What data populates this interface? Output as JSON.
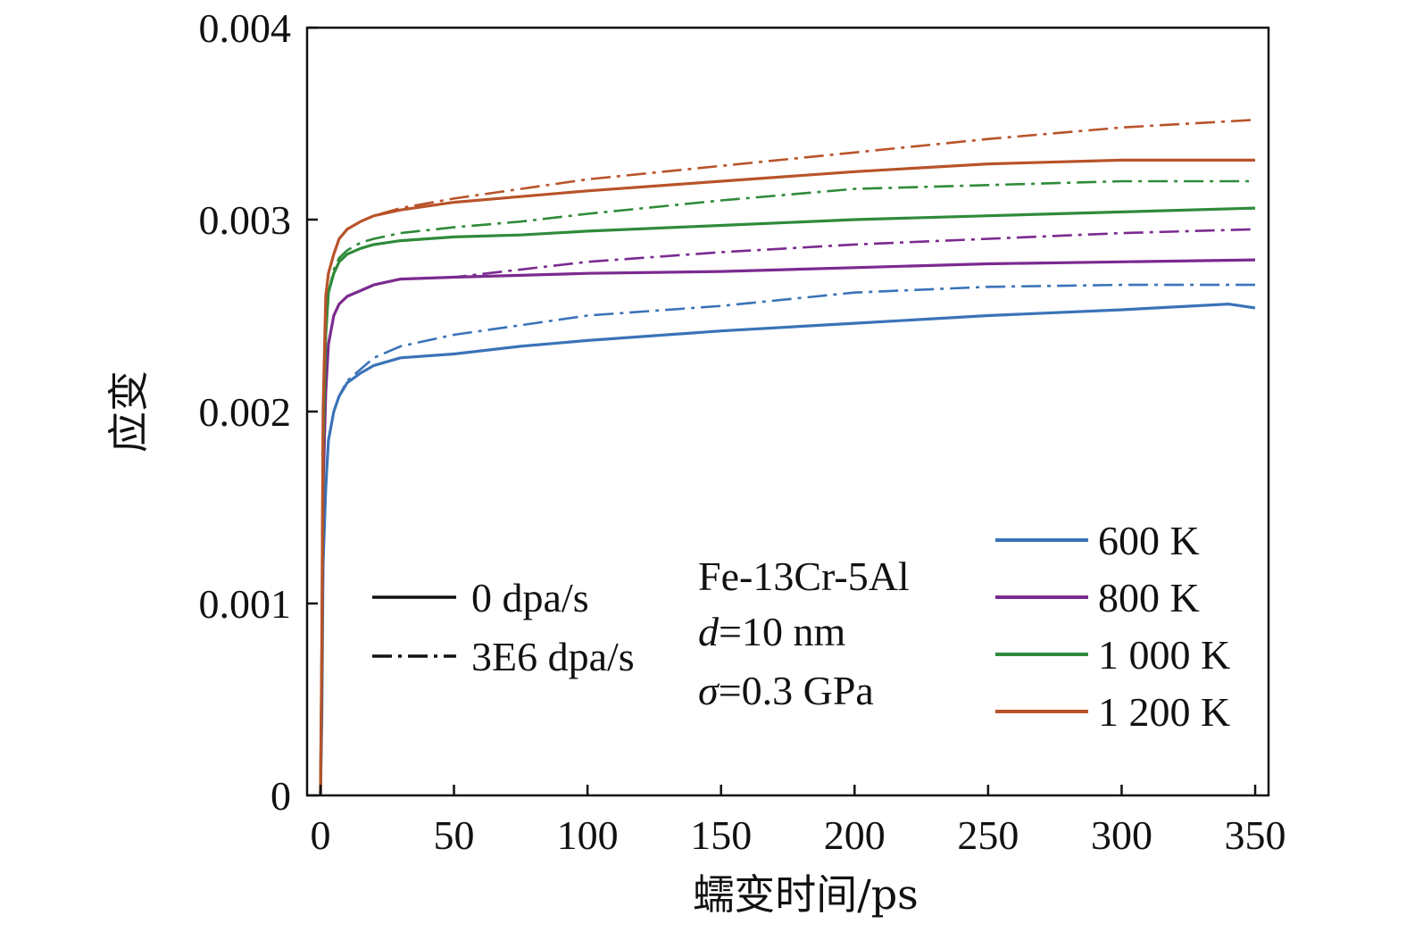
{
  "chart_data": {
    "type": "line",
    "xlabel": "蠕变时间/ps",
    "ylabel": "应变",
    "xlim": [
      -5,
      355
    ],
    "ylim": [
      0,
      0.004
    ],
    "xticks": [
      0,
      50,
      100,
      150,
      200,
      250,
      300,
      350
    ],
    "xtick_labels": [
      "0",
      "50",
      "100",
      "150",
      "200",
      "250",
      "300",
      "350"
    ],
    "yticks": [
      0,
      0.001,
      0.002,
      0.003,
      0.004
    ],
    "ytick_labels": [
      "0",
      "0.001",
      "0.002",
      "0.003",
      "0.004"
    ],
    "grid": false,
    "annotation": {
      "material": "Fe-13Cr-5Al",
      "d_symbol": "d",
      "d_value": "=10 nm",
      "sigma_symbol": "σ",
      "sigma_value": "=0.3 GPa"
    },
    "style_legend": [
      {
        "label": "0 dpa/s",
        "dash": "solid"
      },
      {
        "label": "3E6 dpa/s",
        "dash": "dashdot"
      }
    ],
    "temperature_legend": [
      {
        "label": "600 K",
        "color": "#3a73b8"
      },
      {
        "label": "800 K",
        "color": "#7b2a8f"
      },
      {
        "label": "1 000 K",
        "color": "#2f8a3a"
      },
      {
        "label": "1 200 K",
        "color": "#b8532a"
      }
    ],
    "series": [
      {
        "temperature": "600 K",
        "rate": "0 dpa/s",
        "color": "#3a73b8",
        "dash": "solid",
        "x": [
          0,
          0.5,
          1,
          2,
          3,
          5,
          7,
          10,
          15,
          20,
          30,
          50,
          75,
          100,
          150,
          200,
          250,
          300,
          340,
          350
        ],
        "y": [
          0,
          0.0004,
          0.0012,
          0.0016,
          0.00185,
          0.002,
          0.00208,
          0.00215,
          0.0022,
          0.00224,
          0.00228,
          0.0023,
          0.00234,
          0.00237,
          0.00242,
          0.00246,
          0.0025,
          0.00253,
          0.00256,
          0.00254
        ]
      },
      {
        "temperature": "600 K",
        "rate": "3E6 dpa/s",
        "color": "#3a73b8",
        "dash": "dashdot",
        "x": [
          0,
          0.5,
          1,
          2,
          3,
          5,
          7,
          10,
          15,
          20,
          30,
          50,
          75,
          100,
          150,
          200,
          250,
          300,
          350
        ],
        "y": [
          0,
          0.0004,
          0.0012,
          0.0016,
          0.00185,
          0.002,
          0.00208,
          0.00216,
          0.00222,
          0.00228,
          0.00234,
          0.0024,
          0.00245,
          0.0025,
          0.00255,
          0.00262,
          0.00265,
          0.00266,
          0.00266
        ]
      },
      {
        "temperature": "800 K",
        "rate": "0 dpa/s",
        "color": "#7b2a8f",
        "dash": "solid",
        "x": [
          0,
          0.5,
          1,
          2,
          3,
          5,
          7,
          10,
          15,
          20,
          30,
          50,
          75,
          100,
          150,
          200,
          250,
          300,
          350
        ],
        "y": [
          0,
          0.0006,
          0.0016,
          0.0021,
          0.00235,
          0.0025,
          0.00256,
          0.0026,
          0.00263,
          0.00266,
          0.00269,
          0.0027,
          0.00271,
          0.00272,
          0.00273,
          0.00275,
          0.00277,
          0.00278,
          0.00279
        ]
      },
      {
        "temperature": "800 K",
        "rate": "3E6 dpa/s",
        "color": "#7b2a8f",
        "dash": "dashdot",
        "x": [
          0,
          0.5,
          1,
          2,
          3,
          5,
          7,
          10,
          15,
          20,
          30,
          50,
          75,
          100,
          150,
          200,
          250,
          300,
          350
        ],
        "y": [
          0,
          0.0006,
          0.0016,
          0.0021,
          0.00235,
          0.0025,
          0.00256,
          0.0026,
          0.00263,
          0.00266,
          0.00269,
          0.0027,
          0.00274,
          0.00278,
          0.00283,
          0.00287,
          0.0029,
          0.00293,
          0.00295
        ]
      },
      {
        "temperature": "1 000 K",
        "rate": "0 dpa/s",
        "color": "#2f8a3a",
        "dash": "solid",
        "x": [
          0,
          0.5,
          1,
          2,
          3,
          5,
          7,
          10,
          15,
          20,
          30,
          50,
          75,
          100,
          150,
          200,
          250,
          300,
          350
        ],
        "y": [
          0,
          0.0007,
          0.0018,
          0.0024,
          0.00262,
          0.00272,
          0.00278,
          0.00282,
          0.00285,
          0.00287,
          0.00289,
          0.00291,
          0.00292,
          0.00294,
          0.00297,
          0.003,
          0.00302,
          0.00304,
          0.00306
        ]
      },
      {
        "temperature": "1 000 K",
        "rate": "3E6 dpa/s",
        "color": "#2f8a3a",
        "dash": "dashdot",
        "x": [
          0,
          0.5,
          1,
          2,
          3,
          5,
          7,
          10,
          15,
          20,
          30,
          50,
          75,
          100,
          150,
          200,
          250,
          300,
          350
        ],
        "y": [
          0,
          0.0007,
          0.0018,
          0.0024,
          0.00262,
          0.00274,
          0.0028,
          0.00284,
          0.00288,
          0.0029,
          0.00293,
          0.00296,
          0.00299,
          0.00303,
          0.0031,
          0.00316,
          0.00318,
          0.0032,
          0.0032
        ]
      },
      {
        "temperature": "1 200 K",
        "rate": "0 dpa/s",
        "color": "#b8532a",
        "dash": "solid",
        "x": [
          0,
          0.5,
          1,
          2,
          3,
          5,
          7,
          10,
          15,
          20,
          30,
          50,
          75,
          100,
          150,
          200,
          250,
          300,
          350
        ],
        "y": [
          0,
          0.0008,
          0.002,
          0.0026,
          0.00272,
          0.00282,
          0.0029,
          0.00295,
          0.00299,
          0.00302,
          0.00305,
          0.00309,
          0.00312,
          0.00315,
          0.0032,
          0.00325,
          0.00329,
          0.00331,
          0.00331
        ]
      },
      {
        "temperature": "1 200 K",
        "rate": "3E6 dpa/s",
        "color": "#b8532a",
        "dash": "dashdot",
        "x": [
          0,
          0.5,
          1,
          2,
          3,
          5,
          7,
          10,
          15,
          20,
          30,
          50,
          75,
          100,
          150,
          200,
          250,
          300,
          350
        ],
        "y": [
          0,
          0.0008,
          0.002,
          0.0026,
          0.00272,
          0.00282,
          0.0029,
          0.00295,
          0.00299,
          0.00302,
          0.00306,
          0.00311,
          0.00316,
          0.00321,
          0.00328,
          0.00335,
          0.00342,
          0.00348,
          0.00352
        ]
      }
    ]
  }
}
